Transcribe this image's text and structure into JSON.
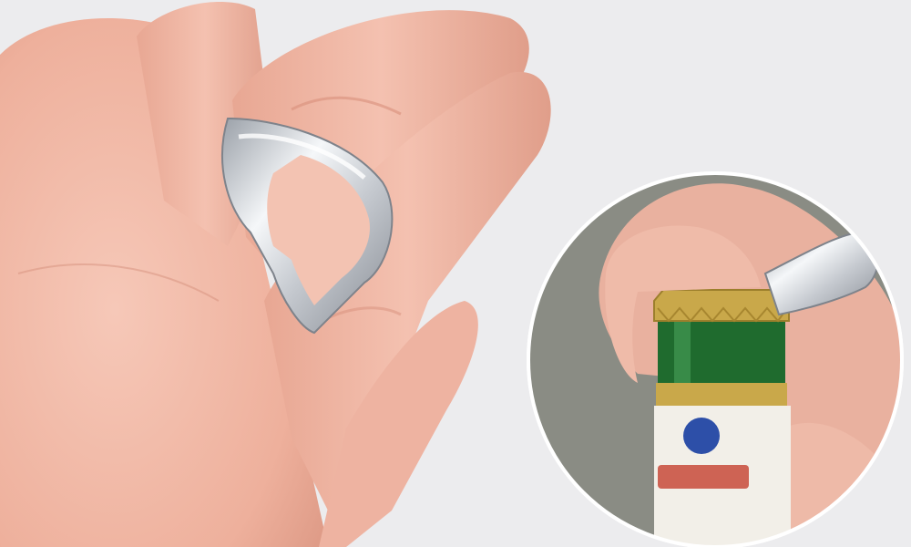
{
  "scene": {
    "background_color": "#ececee",
    "skin_color": "#f0b5a3",
    "skin_shadow_color": "#d98f7c",
    "ring_color": "#c9ccd2",
    "ring_highlight_color": "#f4f6f8",
    "ring_shadow_color": "#8f949c"
  },
  "inset": {
    "background_color": "#8a8c84",
    "bottle_glass_color": "#1f6b2e",
    "bottle_cap_color": "#c9a84a",
    "label_color": "#f2efe8",
    "label_accent_color": "#c84a3a",
    "logo_color": "#2d4fa8",
    "ring_color": "#b8bcc2"
  }
}
